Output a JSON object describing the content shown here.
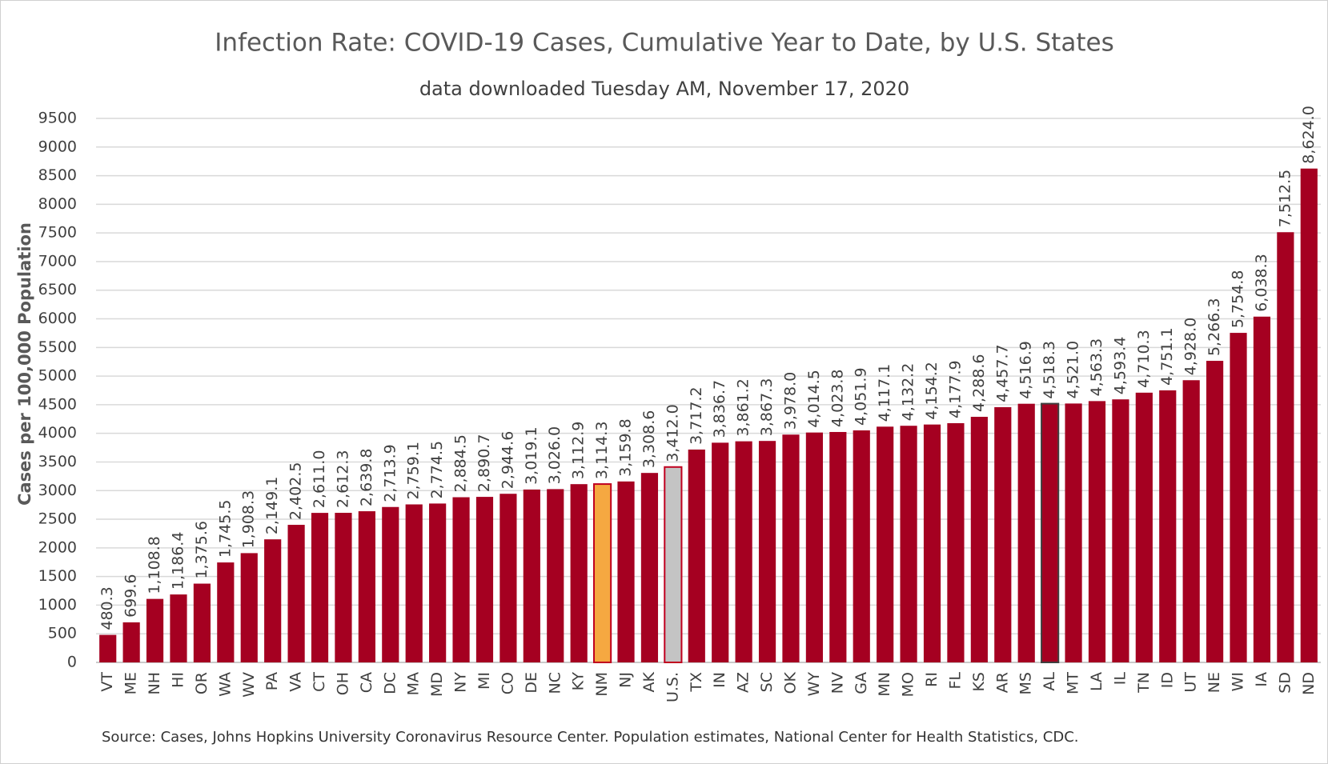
{
  "chart_data": {
    "type": "bar",
    "title": "Infection Rate: COVID-19 Cases, Cumulative Year to Date, by U.S. States",
    "subtitle": "data downloaded Tuesday AM, November 17, 2020",
    "y_label": "Cases per 100,000 Population",
    "source": "Source: Cases, Johns Hopkins University Coronavirus Resource Center. Population estimates, National Center for Health Statistics, CDC.",
    "categories": [
      "VT",
      "ME",
      "NH",
      "HI",
      "OR",
      "WA",
      "WV",
      "PA",
      "VA",
      "CT",
      "OH",
      "CA",
      "DC",
      "MA",
      "MD",
      "NY",
      "MI",
      "CO",
      "DE",
      "NC",
      "KY",
      "NM",
      "NJ",
      "AK",
      "U.S.",
      "TX",
      "IN",
      "AZ",
      "SC",
      "OK",
      "WY",
      "NV",
      "GA",
      "MN",
      "MO",
      "RI",
      "FL",
      "KS",
      "AR",
      "MS",
      "AL",
      "MT",
      "LA",
      "IL",
      "TN",
      "ID",
      "UT",
      "NE",
      "WI",
      "IA",
      "SD",
      "ND"
    ],
    "values": [
      480.3,
      699.6,
      1108.8,
      1186.4,
      1375.6,
      1745.5,
      1908.3,
      2149.1,
      2402.5,
      2611.0,
      2612.3,
      2639.8,
      2713.9,
      2759.1,
      2774.5,
      2884.5,
      2890.7,
      2944.6,
      3019.1,
      3026.0,
      3112.9,
      3114.3,
      3159.8,
      3308.6,
      3412.0,
      3717.2,
      3836.7,
      3861.2,
      3867.3,
      3978.0,
      4014.5,
      4023.8,
      4051.9,
      4117.1,
      4132.2,
      4154.2,
      4177.9,
      4288.6,
      4457.7,
      4516.9,
      4518.3,
      4521.0,
      4563.3,
      4593.4,
      4710.3,
      4751.1,
      4928.0,
      5266.3,
      5754.8,
      6038.3,
      7512.5,
      8624.0
    ],
    "value_labels": [
      "480.3",
      "699.6",
      "1,108.8",
      "1,186.4",
      "1,375.6",
      "1,745.5",
      "1,908.3",
      "2,149.1",
      "2,402.5",
      "2,611.0",
      "2,612.3",
      "2,639.8",
      "2,713.9",
      "2,759.1",
      "2,774.5",
      "2,884.5",
      "2,890.7",
      "2,944.6",
      "3,019.1",
      "3,026.0",
      "3,112.9",
      "3,114.3",
      "3,159.8",
      "3,308.6",
      "3,412.0",
      "3,717.2",
      "3,836.7",
      "3,861.2",
      "3,867.3",
      "3,978.0",
      "4,014.5",
      "4,023.8",
      "4,051.9",
      "4,117.1",
      "4,132.2",
      "4,154.2",
      "4,177.9",
      "4,288.6",
      "4,457.7",
      "4,516.9",
      "4,518.3",
      "4,521.0",
      "4,563.3",
      "4,593.4",
      "4,710.3",
      "4,751.1",
      "4,928.0",
      "5,266.3",
      "5,754.8",
      "6,038.3",
      "7,512.5",
      "8,624.0"
    ],
    "color": "#a50021",
    "highlight_colors": {
      "NM": "#f5a841",
      "U.S.": "#c4c4c4"
    },
    "highlight_edges": {
      "NM": "#c0001f",
      "U.S.": "#c0001f",
      "AL": "#404040"
    },
    "ylim": [
      0,
      9500
    ],
    "yticks": [
      0,
      500,
      1000,
      1500,
      2000,
      2500,
      3000,
      3500,
      4000,
      4500,
      5000,
      5500,
      6000,
      6500,
      7000,
      7500,
      8000,
      8500,
      9000,
      9500
    ],
    "grid": true
  }
}
